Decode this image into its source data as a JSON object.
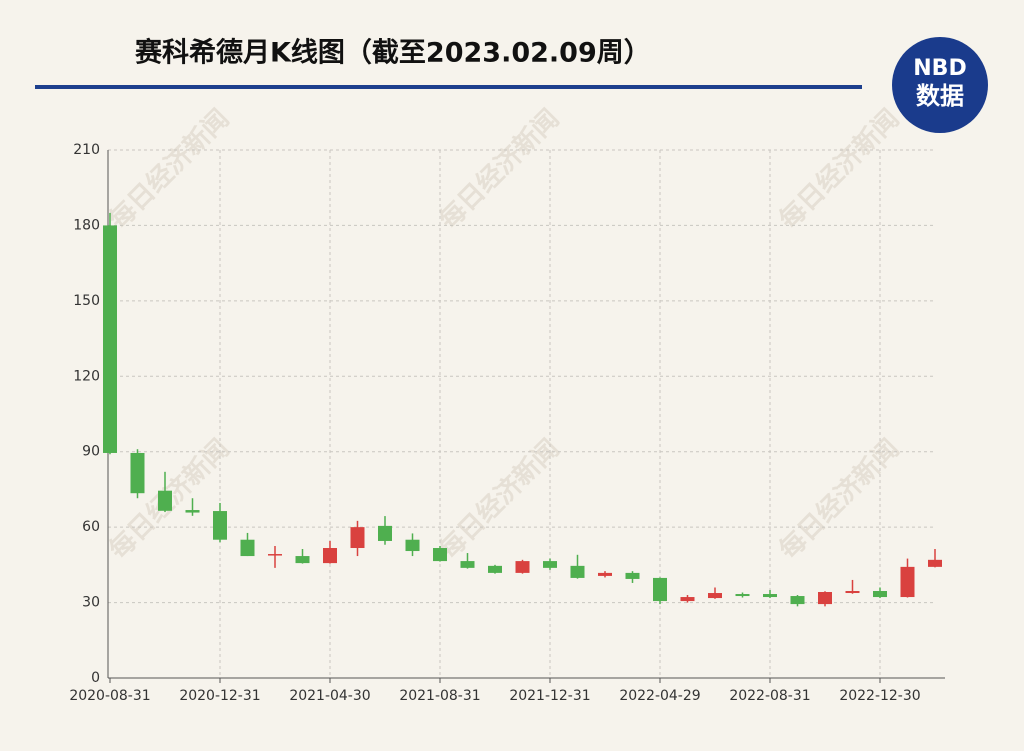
{
  "chart_data": {
    "type": "candlestick",
    "title": "赛科希德月K线图（截至2023.02.09周）",
    "logo": [
      "NBD",
      "数据"
    ],
    "watermark": "每日经济新闻",
    "categories": [
      "2020-08-31",
      null,
      null,
      null,
      "2020-12-31",
      null,
      null,
      null,
      "2021-04-30",
      null,
      null,
      null,
      "2021-08-31",
      null,
      null,
      null,
      "2021-12-31",
      null,
      null,
      null,
      "2022-04-29",
      null,
      null,
      null,
      "2022-08-31",
      null,
      null,
      null,
      "2022-12-30",
      null,
      null
    ],
    "open": [
      180,
      89.5,
      74.5,
      66.8,
      66.4,
      55,
      49,
      48.5,
      45.7,
      51.7,
      60.5,
      55,
      51.7,
      46.5,
      44.6,
      41.8,
      46.5,
      44.6,
      40.6,
      41.8,
      39.8,
      30.6,
      31.8,
      33.4,
      33.4,
      32.6,
      29.4,
      33.8,
      34.6,
      32.2,
      44.2
    ],
    "high": [
      185,
      91,
      82,
      71.5,
      69.6,
      57.7,
      52.5,
      51.3,
      54.5,
      62.5,
      64.4,
      57.5,
      52.5,
      49.7,
      45,
      47,
      47.5,
      49,
      42.5,
      42.5,
      40,
      33,
      36,
      34,
      35,
      33,
      34.5,
      39,
      36,
      47.5,
      51.3
    ],
    "low": [
      89,
      71.5,
      66,
      64.5,
      54,
      48.5,
      43.8,
      45.5,
      45.5,
      48.5,
      53,
      48.5,
      46.3,
      43.5,
      41.5,
      41.5,
      43,
      39.5,
      40,
      37.8,
      29.4,
      30,
      31.5,
      32,
      31.8,
      28.5,
      28.5,
      33.5,
      31.8,
      32,
      44
    ],
    "close": [
      89.5,
      73.5,
      66.5,
      65.8,
      55,
      48.5,
      49.3,
      45.7,
      51.7,
      60,
      54.5,
      50.5,
      46.5,
      43.8,
      41.8,
      46.5,
      43.8,
      39.8,
      41.8,
      39.4,
      30.6,
      32.2,
      33.8,
      32.6,
      32.2,
      29.4,
      34.2,
      34.6,
      32.2,
      44.2,
      47
    ],
    "up_color": "#d9413f",
    "down_color": "#4faf4f",
    "ylim": [
      0,
      210
    ],
    "yticks": [
      0,
      30,
      60,
      90,
      120,
      150,
      180,
      210
    ],
    "grid": true
  }
}
